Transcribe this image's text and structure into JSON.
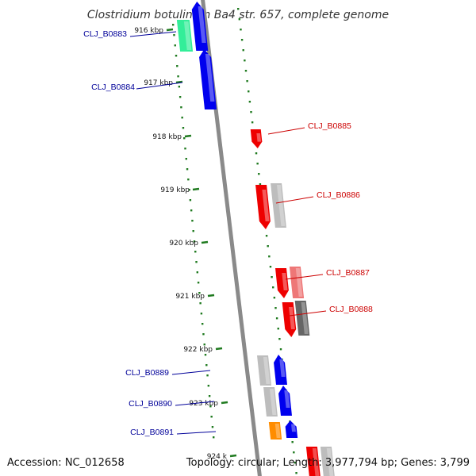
{
  "title": "Clostridium botulinum Ba4 str. 657, complete genome",
  "accession": "Accession: NC_012658",
  "topology": "Topology: circular; Length: 3,977,794 bp; Genes: 3,799",
  "colors": {
    "backbone": "#8a8a8a",
    "tick": "#1f7a1f",
    "forward_label": "#000099",
    "reverse_label": "#cc0000",
    "blue": "#0000ee",
    "red": "#ee0000",
    "green": "#33ee99",
    "gray": "#bdbdbd",
    "dark_gray": "#666666",
    "pink": "#ee7777",
    "orange": "#ff8c00"
  },
  "ticks": [
    {
      "label": "916 kbp"
    },
    {
      "label": "917 kbp"
    },
    {
      "label": "918 kbp"
    },
    {
      "label": "919 kbp"
    },
    {
      "label": "920 kbp"
    },
    {
      "label": "921 kbp"
    },
    {
      "label": "922 kbp"
    },
    {
      "label": "923 kbp"
    },
    {
      "label": "924 k"
    }
  ],
  "genes": [
    {
      "label": "CLJ_B0883",
      "strand": "+"
    },
    {
      "label": "CLJ_B0884",
      "strand": "+"
    },
    {
      "label": "CLJ_B0885",
      "strand": "-"
    },
    {
      "label": "CLJ_B0886",
      "strand": "-"
    },
    {
      "label": "CLJ_B0887",
      "strand": "-"
    },
    {
      "label": "CLJ_B0888",
      "strand": "-"
    },
    {
      "label": "CLJ_B0889",
      "strand": "+"
    },
    {
      "label": "CLJ_B0890",
      "strand": "+"
    },
    {
      "label": "CLJ_B0891",
      "strand": "+"
    }
  ]
}
